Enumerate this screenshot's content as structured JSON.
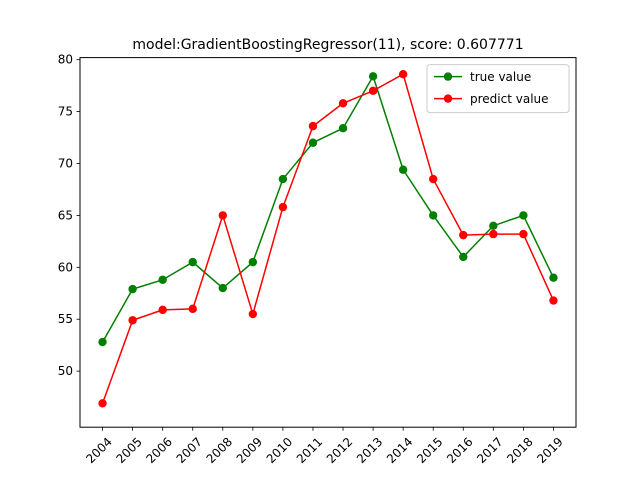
{
  "chart_data": {
    "type": "line",
    "title": "model:GradientBoostingRegressor(11), score: 0.607771",
    "xlabel": "",
    "ylabel": "",
    "categories": [
      "2004",
      "2005",
      "2006",
      "2007",
      "2008",
      "2009",
      "2010",
      "2011",
      "2012",
      "2013",
      "2014",
      "2015",
      "2016",
      "2017",
      "2018",
      "2019"
    ],
    "ylim": [
      44.6,
      80.2
    ],
    "yticks": [
      50,
      55,
      60,
      65,
      70,
      75,
      80
    ],
    "x_tick_rotation_deg": 45,
    "grid": false,
    "legend_position": "upper right",
    "series": [
      {
        "name": "true value",
        "color": "#008000",
        "marker": "circle",
        "values": [
          52.8,
          57.9,
          58.8,
          60.5,
          58.0,
          60.5,
          68.5,
          72.0,
          73.4,
          78.4,
          69.4,
          65.0,
          61.0,
          64.0,
          65.0,
          59.0
        ]
      },
      {
        "name": "predict value",
        "color": "#ff0000",
        "marker": "circle",
        "values": [
          46.9,
          54.9,
          55.9,
          56.0,
          65.0,
          55.5,
          65.8,
          73.6,
          75.8,
          77.0,
          78.6,
          68.5,
          63.1,
          63.2,
          63.2,
          56.8
        ]
      }
    ]
  }
}
